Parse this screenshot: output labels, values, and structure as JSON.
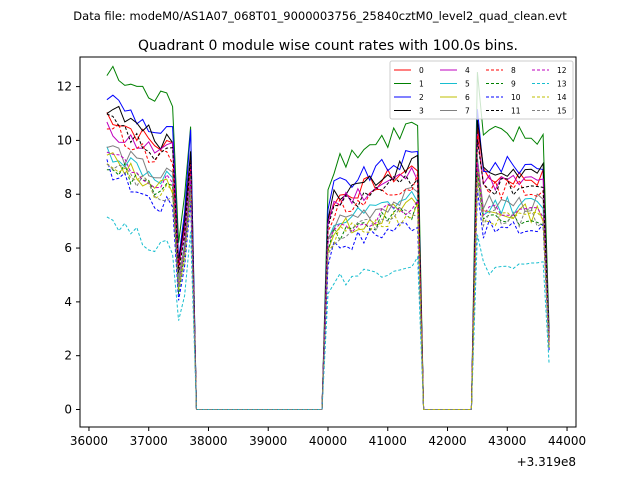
{
  "suptitle": "Data file: modeM0/AS1A07_068T01_9000003756_25840cztM0_level2_quad_clean.evt",
  "chart_data": {
    "type": "line",
    "title": "Quadrant 0 module wise count rates with 100.0s bins.",
    "xlabel": "",
    "ylabel": "",
    "x_offset_label": "+3.319e8",
    "xlim": [
      35850,
      44150
    ],
    "ylim": [
      -0.65,
      13.1
    ],
    "xticks": [
      36000,
      37000,
      38000,
      39000,
      40000,
      41000,
      42000,
      43000,
      44000
    ],
    "xtick_labels": [
      "36000",
      "37000",
      "38000",
      "39000",
      "40000",
      "41000",
      "42000",
      "43000",
      "44000"
    ],
    "yticks": [
      0,
      2,
      4,
      6,
      8,
      10,
      12
    ],
    "ytick_labels": [
      "0",
      "2",
      "4",
      "6",
      "8",
      "10",
      "12"
    ],
    "legend": {
      "position": "top-right",
      "columns": 4
    },
    "segments": [
      {
        "x_start": 36300,
        "x_end": 37400,
        "shape": "pre"
      },
      {
        "x_start": 37500,
        "x_end": 37700,
        "shape": "dip"
      },
      {
        "x_start": 37800,
        "x_end": 39900,
        "shape": "zero"
      },
      {
        "x_start": 40000,
        "x_end": 41500,
        "shape": "rise"
      },
      {
        "x_start": 41600,
        "x_end": 42400,
        "shape": "zero"
      },
      {
        "x_start": 42500,
        "x_end": 43600,
        "shape": "plateau"
      },
      {
        "x_start": 43700,
        "x_end": 43700,
        "shape": "drop"
      }
    ],
    "series": [
      {
        "name": "0",
        "color": "#ff0000",
        "dashed": false,
        "base": 9.8,
        "first": 11.0,
        "mid_peak": 9.0,
        "end_val": 2.5,
        "noise": 0.35
      },
      {
        "name": "1",
        "color": "#008000",
        "dashed": false,
        "base": 11.5,
        "first": 12.5,
        "mid_peak": 10.5,
        "end_val": 3.0,
        "noise": 0.45
      },
      {
        "name": "2",
        "color": "#0000ff",
        "dashed": false,
        "base": 10.3,
        "first": 11.7,
        "mid_peak": 10.3,
        "end_val": 2.7,
        "noise": 0.35
      },
      {
        "name": "3",
        "color": "#000000",
        "dashed": false,
        "base": 10.0,
        "first": 11.3,
        "mid_peak": 9.7,
        "end_val": 2.6,
        "noise": 0.35
      },
      {
        "name": "4",
        "color": "#bf00bf",
        "dashed": false,
        "base": 9.6,
        "first": 10.4,
        "mid_peak": 9.2,
        "end_val": 2.6,
        "noise": 0.35
      },
      {
        "name": "5",
        "color": "#17becf",
        "dashed": false,
        "base": 8.6,
        "first": 9.6,
        "mid_peak": 8.6,
        "end_val": 2.4,
        "noise": 0.35
      },
      {
        "name": "6",
        "color": "#bfbf00",
        "dashed": false,
        "base": 8.3,
        "first": 9.4,
        "mid_peak": 8.4,
        "end_val": 2.3,
        "noise": 0.35
      },
      {
        "name": "7",
        "color": "#808080",
        "dashed": false,
        "base": 8.7,
        "first": 9.8,
        "mid_peak": 8.7,
        "end_val": 2.4,
        "noise": 0.35
      },
      {
        "name": "8",
        "color": "#ff0000",
        "dashed": true,
        "base": 9.3,
        "first": 10.6,
        "mid_peak": 9.2,
        "end_val": 2.5,
        "noise": 0.35
      },
      {
        "name": "9",
        "color": "#008000",
        "dashed": true,
        "base": 8.1,
        "first": 9.2,
        "mid_peak": 8.2,
        "end_val": 2.3,
        "noise": 0.35
      },
      {
        "name": "10",
        "color": "#0000ff",
        "dashed": true,
        "base": 7.6,
        "first": 9.0,
        "mid_peak": 7.8,
        "end_val": 2.2,
        "noise": 0.35
      },
      {
        "name": "11",
        "color": "#000000",
        "dashed": true,
        "base": 9.4,
        "first": 10.8,
        "mid_peak": 9.4,
        "end_val": 2.6,
        "noise": 0.35
      },
      {
        "name": "12",
        "color": "#bf00bf",
        "dashed": true,
        "base": 8.4,
        "first": 9.5,
        "mid_peak": 8.4,
        "end_val": 2.4,
        "noise": 0.35
      },
      {
        "name": "13",
        "color": "#17becf",
        "dashed": true,
        "base": 6.0,
        "first": 7.2,
        "mid_peak": 6.7,
        "end_val": 1.7,
        "noise": 0.3
      },
      {
        "name": "14",
        "color": "#bfbf00",
        "dashed": true,
        "base": 8.0,
        "first": 9.3,
        "mid_peak": 8.0,
        "end_val": 2.3,
        "noise": 0.35
      },
      {
        "name": "15",
        "color": "#808080",
        "dashed": true,
        "base": 8.1,
        "first": 9.4,
        "mid_peak": 8.1,
        "end_val": 2.3,
        "noise": 0.35
      }
    ]
  }
}
